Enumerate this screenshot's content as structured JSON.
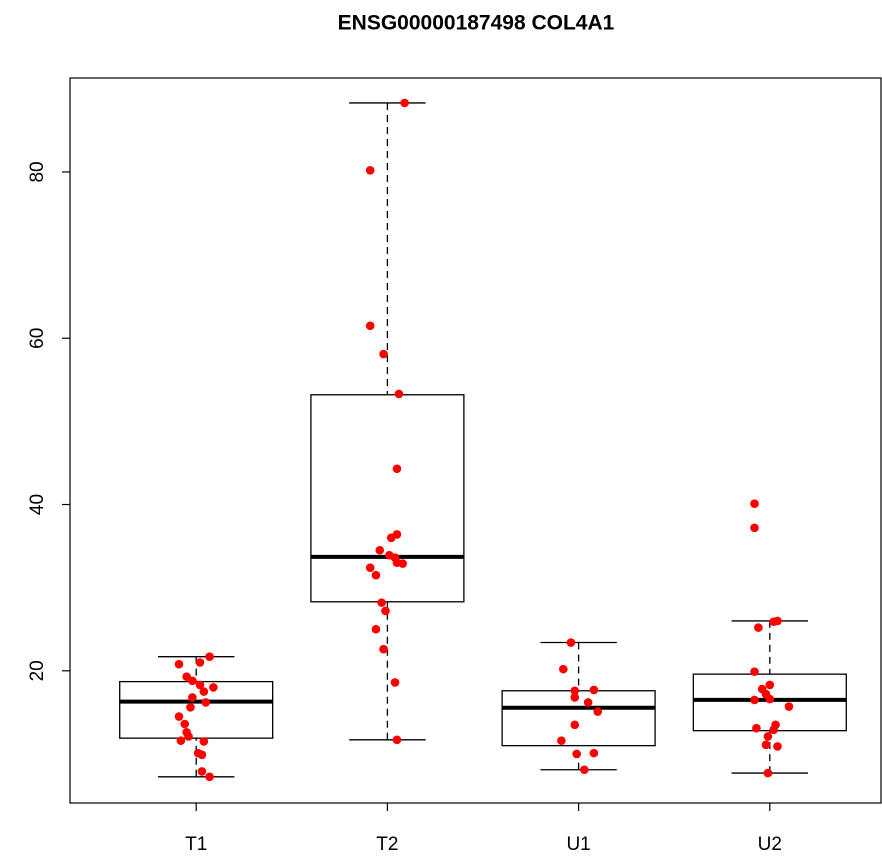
{
  "chart_data": {
    "type": "box",
    "title": "ENSG00000187498 COL4A1",
    "categories": [
      "T1",
      "T2",
      "U1",
      "U2"
    ],
    "boxes": [
      {
        "whisker_low": 7.25,
        "q1": 11.9,
        "median": 16.3,
        "q3": 18.7,
        "whisker_high": 21.7
      },
      {
        "whisker_low": 11.7,
        "q1": 28.3,
        "median": 33.7,
        "q3": 53.2,
        "whisker_high": 88.3
      },
      {
        "whisker_low": 8.1,
        "q1": 11.0,
        "median": 15.55,
        "q3": 17.6,
        "whisker_high": 23.4
      },
      {
        "whisker_low": 7.7,
        "q1": 12.8,
        "median": 16.5,
        "q3": 19.6,
        "whisker_high": 26.0
      }
    ],
    "points": {
      "color": "#ff0000",
      "x": [
        0.91,
        1.07,
        1.02,
        0.95,
        0.98,
        1.02,
        1.09,
        1.04,
        0.98,
        1.05,
        0.97,
        0.91,
        0.94,
        0.95,
        0.92,
        0.96,
        1.04,
        1.01,
        1.03,
        1.03,
        1.07,
        2.09,
        1.91,
        1.91,
        1.98,
        2.06,
        2.05,
        2.05,
        2.02,
        1.96,
        2.01,
        2.04,
        1.91,
        1.94,
        2.05,
        2.08,
        1.97,
        1.99,
        1.94,
        1.98,
        2.04,
        2.05,
        2.96,
        2.92,
        2.98,
        3.08,
        2.98,
        3.05,
        3.1,
        2.98,
        2.91,
        2.99,
        3.08,
        3.03,
        3.92,
        3.92,
        4.04,
        4.02,
        3.94,
        3.92,
        4.0,
        3.96,
        3.98,
        3.92,
        4.0,
        4.1,
        3.93,
        4.03,
        4.02,
        3.99,
        3.98,
        4.04,
        3.99
      ],
      "y": [
        20.8,
        21.7,
        21.0,
        19.3,
        18.8,
        18.3,
        18.0,
        17.5,
        16.8,
        16.2,
        15.6,
        14.5,
        13.6,
        12.6,
        11.6,
        12.1,
        11.5,
        10.1,
        9.9,
        7.9,
        7.25,
        88.3,
        80.2,
        61.5,
        58.1,
        53.3,
        44.3,
        36.4,
        36.0,
        34.5,
        33.9,
        33.6,
        32.4,
        31.5,
        33.0,
        32.9,
        28.2,
        27.2,
        25.0,
        22.6,
        18.6,
        11.7,
        23.4,
        20.2,
        17.6,
        17.7,
        16.8,
        16.2,
        15.1,
        13.5,
        11.6,
        10.0,
        10.1,
        8.1,
        40.1,
        37.2,
        26.0,
        25.9,
        25.2,
        19.9,
        18.3,
        17.8,
        17.2,
        16.5,
        16.6,
        15.7,
        13.1,
        13.5,
        12.9,
        12.1,
        11.1,
        10.9,
        7.7
      ]
    },
    "xlim": [
      0.34,
      4.66
    ],
    "ylim": [
      4.1,
      91.3
    ],
    "yticks": [
      20,
      40,
      60,
      80
    ]
  }
}
